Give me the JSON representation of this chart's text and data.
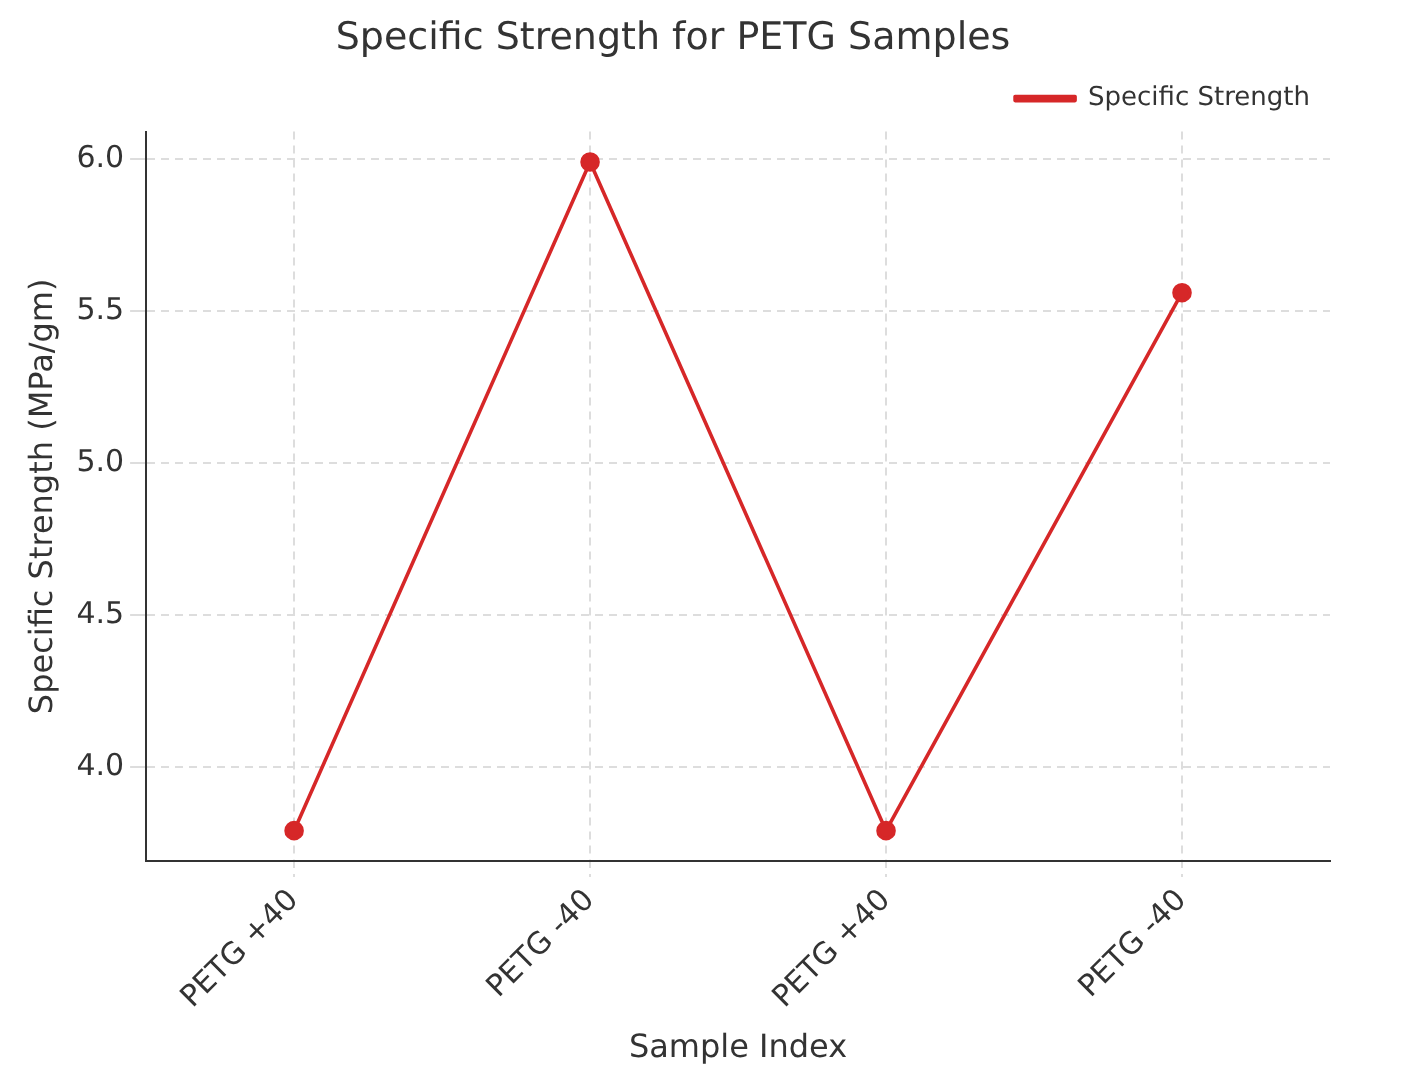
{
  "chart_data": {
    "type": "line",
    "title": "Specific Strength for PETG Samples",
    "xlabel": "Sample Index",
    "ylabel": "Specific Strength (MPa/gm)",
    "categories": [
      "PETG +40",
      "PETG -40",
      "PETG +40",
      "PETG -40"
    ],
    "series": [
      {
        "name": "Specific Strength",
        "color": "#d62728",
        "values": [
          3.79,
          5.99,
          3.79,
          5.56
        ]
      }
    ],
    "ylim": [
      3.69,
      6.09
    ],
    "yticks": [
      {
        "value": 4,
        "label": "4.0"
      },
      4.5,
      {
        "value": 5,
        "label": "5.0"
      },
      5.5,
      {
        "value": 6,
        "label": "6.0"
      }
    ],
    "grid": true,
    "legend": "top right",
    "marker": "circle",
    "line_style": "solid"
  }
}
